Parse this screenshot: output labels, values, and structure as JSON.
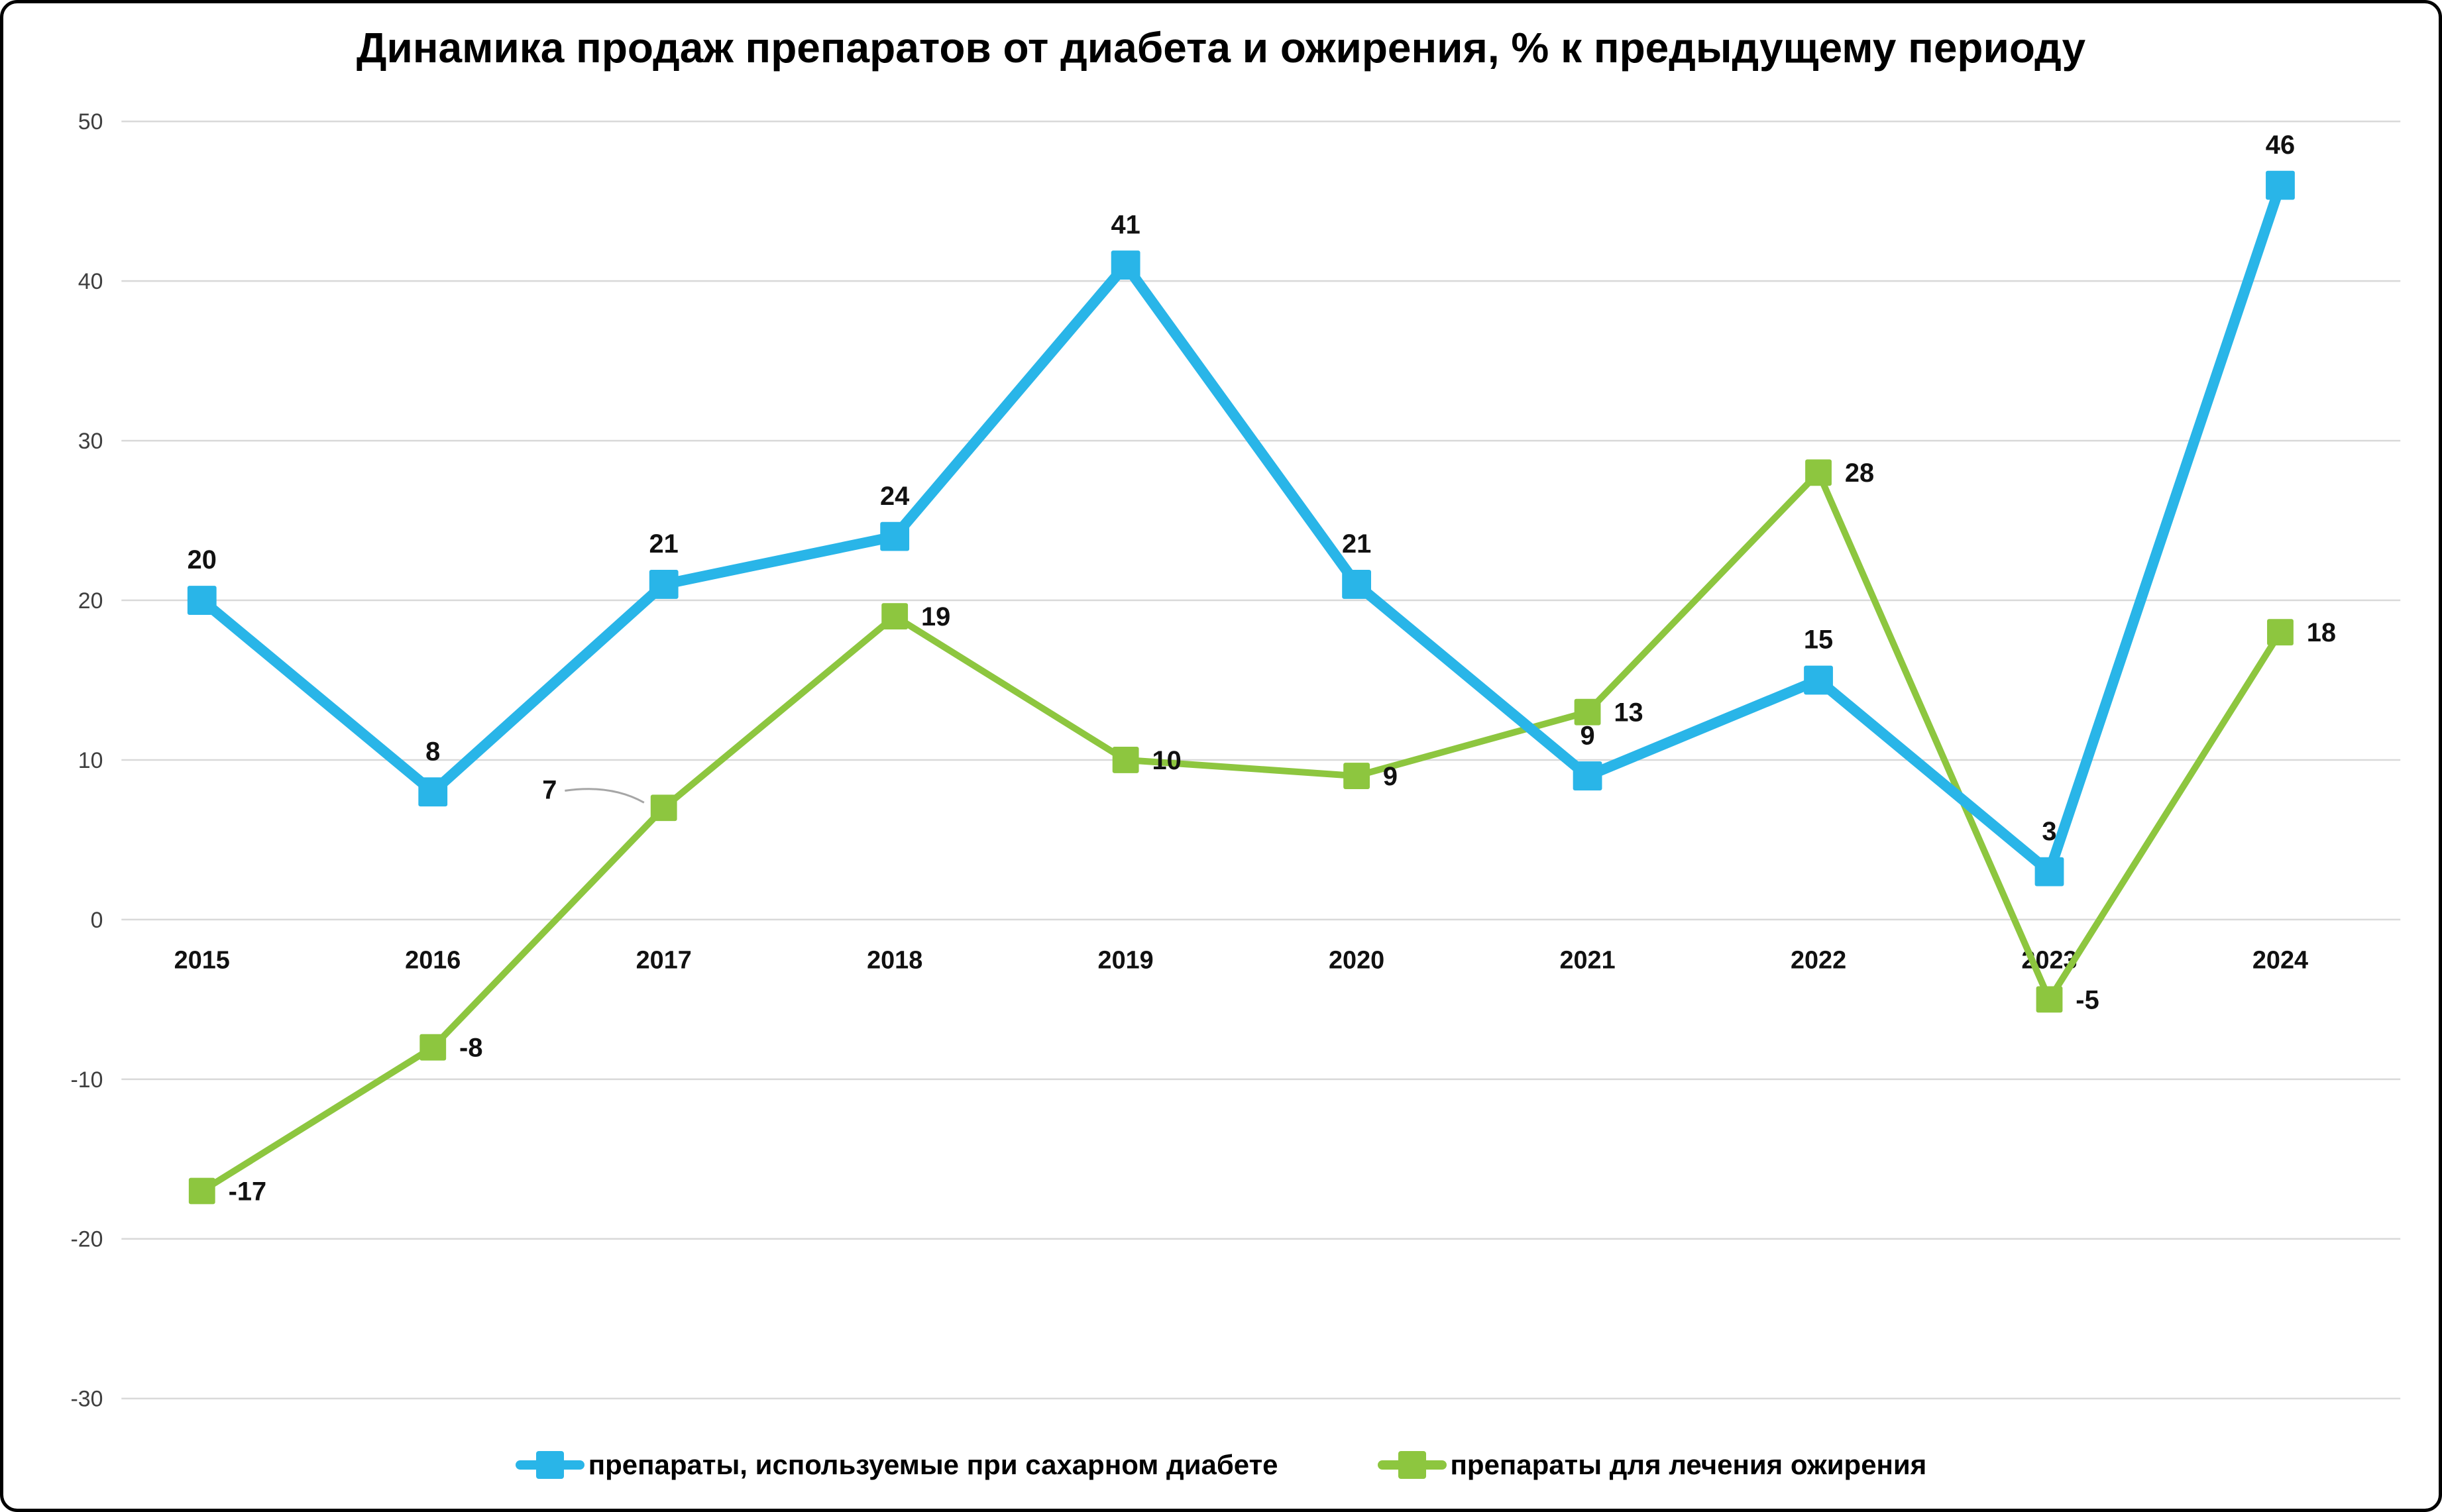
{
  "title": "Динамика продаж препаратов от диабета и ожирения, % к предыдущему периоду",
  "chart_data": {
    "type": "line",
    "title": "Динамика продаж препаратов от диабета и ожирения, % к предыдущему периоду",
    "categories": [
      "2015",
      "2016",
      "2017",
      "2018",
      "2019",
      "2020",
      "2021",
      "2022",
      "2023",
      "2024"
    ],
    "series": [
      {
        "name": "препараты, используемые при сахарном диабете",
        "values": [
          20,
          8,
          21,
          24,
          41,
          21,
          9,
          15,
          3,
          46
        ],
        "color": "#29B5E8",
        "label_placement_default": "above",
        "label_placement_overrides": {}
      },
      {
        "name": "препараты для лечения ожирения",
        "values": [
          -17,
          -8,
          7,
          19,
          10,
          9,
          13,
          28,
          -5,
          18
        ],
        "color": "#8DC63F",
        "label_placement_default": "right",
        "label_placement_overrides": {
          "2": "left-callout"
        }
      }
    ],
    "ylim": [
      -30,
      50
    ],
    "yticks": [
      -30,
      -20,
      -10,
      0,
      10,
      20,
      30,
      40,
      50
    ],
    "ytick_step": 10,
    "xlabel": "",
    "ylabel": "",
    "grid": "horizontal",
    "legend_position": "bottom",
    "colors": {
      "grid": "#d9d9d9",
      "axis_text": "#3f3f3f",
      "x_axis_text": "#111111",
      "data_label": "#111111",
      "callout": "#a6a6a6",
      "background": "#ffffff",
      "border": "#000000"
    }
  }
}
